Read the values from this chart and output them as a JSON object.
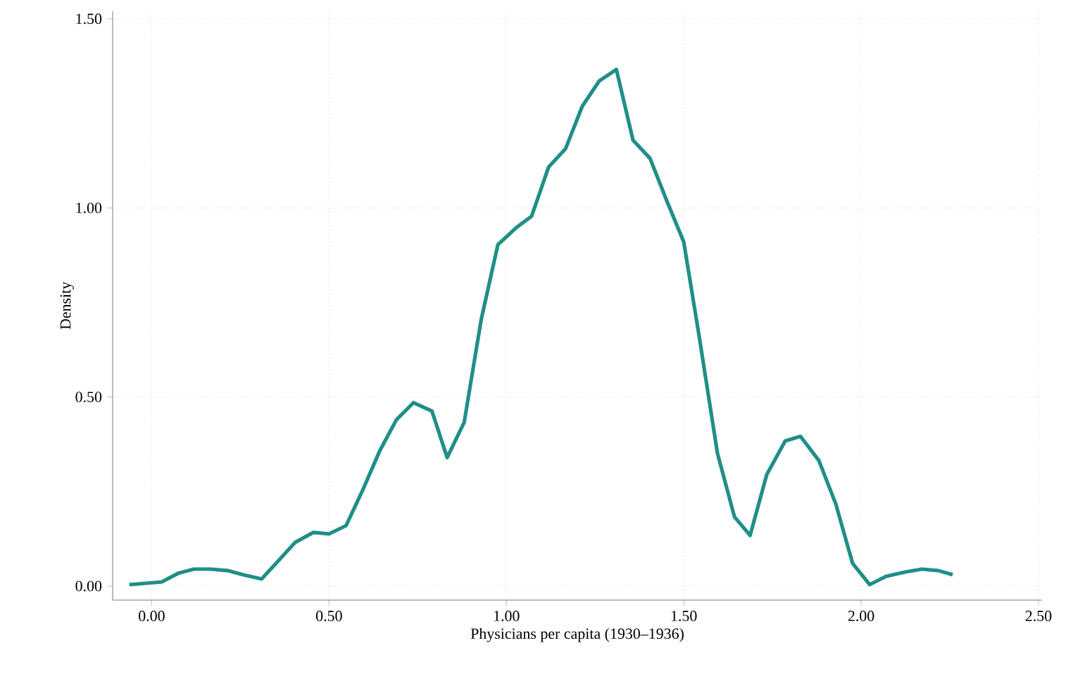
{
  "chart_data": {
    "type": "line",
    "xlabel": "Physicians per capita (1930–1936)",
    "ylabel": "Density",
    "xlim": [
      -0.11,
      2.51
    ],
    "ylim": [
      -0.037,
      1.52
    ],
    "xticks": [
      {
        "value": 0,
        "label": "0.00"
      },
      {
        "value": 0.5,
        "label": "0.50"
      },
      {
        "value": 1,
        "label": "1.00"
      },
      {
        "value": 1.5,
        "label": "1.50"
      },
      {
        "value": 2,
        "label": "2.00"
      },
      {
        "value": 2.5,
        "label": "2.50"
      }
    ],
    "yticks": [
      {
        "value": 0,
        "label": "0.00"
      },
      {
        "value": 0.5,
        "label": "0.50"
      },
      {
        "value": 1,
        "label": "1.00"
      },
      {
        "value": 1.5,
        "label": "1.50"
      }
    ],
    "grid": true,
    "marker": "none",
    "line_style": "solid",
    "series": [
      {
        "color": "#1f8f87",
        "x": [
          -0.063,
          0.028,
          0.075,
          0.119,
          0.167,
          0.214,
          0.258,
          0.31,
          0.357,
          0.405,
          0.456,
          0.5,
          0.548,
          0.595,
          0.643,
          0.69,
          0.738,
          0.79,
          0.833,
          0.881,
          0.929,
          0.976,
          1.028,
          1.071,
          1.119,
          1.167,
          1.214,
          1.262,
          1.31,
          1.357,
          1.405,
          1.452,
          1.5,
          1.544,
          1.595,
          1.643,
          1.687,
          1.734,
          1.786,
          1.829,
          1.881,
          1.929,
          1.976,
          2.024,
          2.071,
          2.123,
          2.171,
          2.218,
          2.258
        ],
        "values": [
          0.004,
          0.011,
          0.034,
          0.045,
          0.045,
          0.041,
          0.03,
          0.019,
          0.067,
          0.116,
          0.142,
          0.138,
          0.16,
          0.254,
          0.358,
          0.44,
          0.485,
          0.463,
          0.34,
          0.433,
          0.705,
          0.903,
          0.948,
          0.978,
          1.108,
          1.157,
          1.269,
          1.336,
          1.366,
          1.179,
          1.131,
          1.019,
          0.91,
          0.657,
          0.351,
          0.183,
          0.134,
          0.295,
          0.384,
          0.396,
          0.332,
          0.216,
          0.06,
          0.004,
          0.026,
          0.037,
          0.045,
          0.041,
          0.03
        ]
      }
    ]
  }
}
